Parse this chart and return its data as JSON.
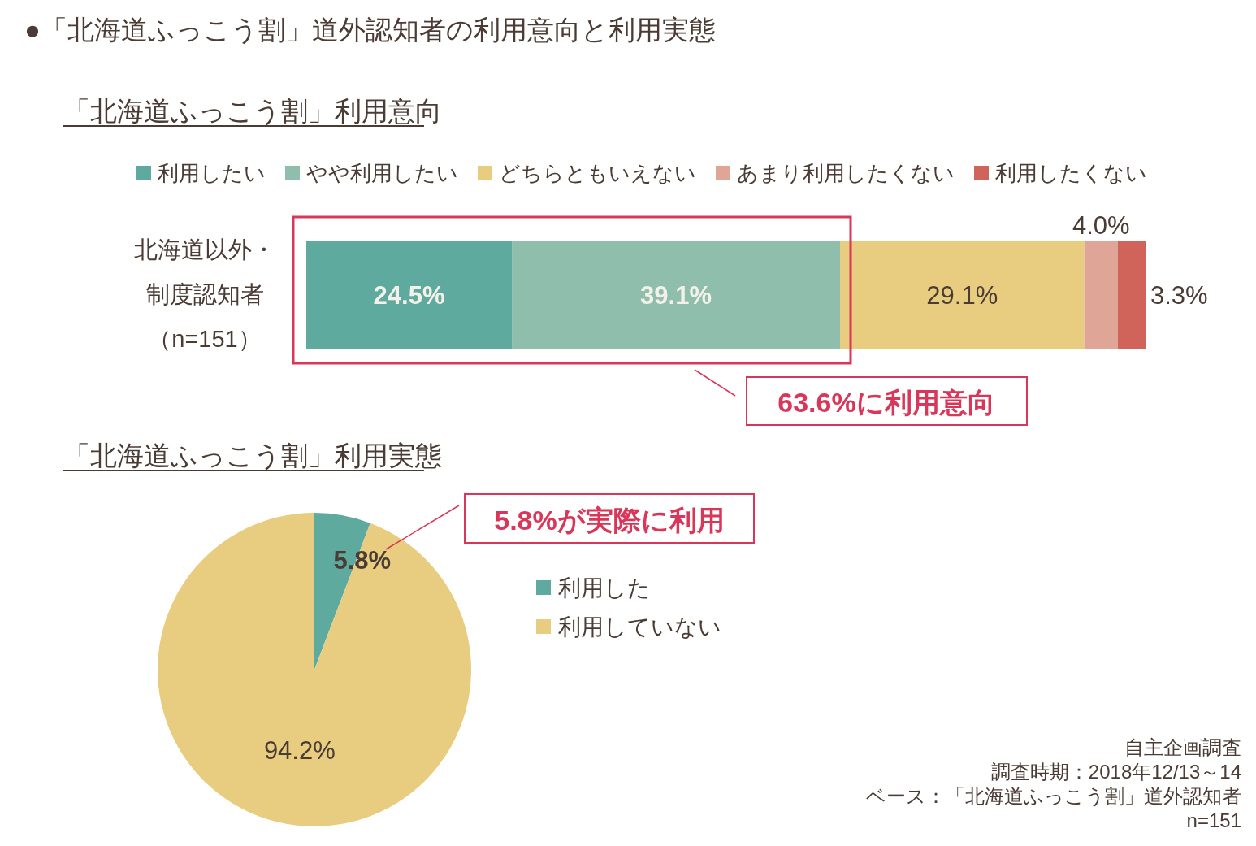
{
  "chart_data": [
    {
      "type": "bar",
      "orientation": "horizontal",
      "stacked": true,
      "title": "●「北海道ふっこう割」道外認知者の利用意向と利用実態",
      "subtitle": "「北海道ふっこう割」利用意向",
      "categories": [
        "北海道以外・制度認知者（n=151）"
      ],
      "xlim": [
        0,
        100
      ],
      "legend": "top",
      "annotations": [
        "63.6%に利用意向"
      ],
      "series": [
        {
          "name": "利用したい",
          "color": "#5eaa9e",
          "values": [
            24.5
          ],
          "value_labels": [
            "24.5%"
          ]
        },
        {
          "name": "やや利用したい",
          "color": "#8fbeac",
          "values": [
            39.1
          ],
          "value_labels": [
            "39.1%"
          ]
        },
        {
          "name": "どちらともいえない",
          "color": "#e8cc7f",
          "values": [
            29.1
          ],
          "value_labels": [
            "29.1%"
          ]
        },
        {
          "name": "あまり利用したくない",
          "color": "#dfa597",
          "values": [
            4.0
          ],
          "value_labels": [
            "4.0%"
          ]
        },
        {
          "name": "利用したくない",
          "color": "#d0645a",
          "values": [
            3.3
          ],
          "value_labels": [
            "3.3%"
          ]
        }
      ]
    },
    {
      "type": "pie",
      "title": "「北海道ふっこう割」利用実態",
      "categories": [
        "利用した",
        "利用していない"
      ],
      "values": [
        5.8,
        94.2
      ],
      "colors": [
        "#5eaa9e",
        "#e8cc7f"
      ],
      "value_labels": [
        "5.8%",
        "94.2%"
      ],
      "legend": "right",
      "annotations": [
        "5.8%が実際に利用",
        "自主企画調査",
        "調査時期：2018年12/13～14",
        "ベース：「北海道ふっこう割」道外認知者",
        "n=151"
      ]
    }
  ]
}
